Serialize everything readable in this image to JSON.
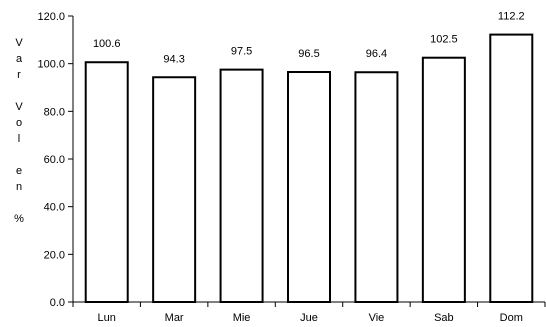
{
  "chart_data": {
    "type": "bar",
    "categories": [
      "Lun",
      "Mar",
      "Mie",
      "Jue",
      "Vie",
      "Sab",
      "Dom"
    ],
    "values": [
      100.6,
      94.3,
      97.5,
      96.5,
      96.4,
      102.5,
      112.2
    ],
    "data_labels": [
      "100.6",
      "94.3",
      "97.5",
      "96.5",
      "96.4",
      "102.5",
      "112.2"
    ],
    "ylabel": "Var Vol en %",
    "ylim": [
      0,
      120
    ],
    "yticks": [
      "0.0",
      "20.0",
      "40.0",
      "60.0",
      "80.0",
      "100.0",
      "120.0"
    ],
    "grid": false,
    "legend": "none",
    "bar_fill": "#ffffff",
    "bar_stroke": "#000000"
  }
}
